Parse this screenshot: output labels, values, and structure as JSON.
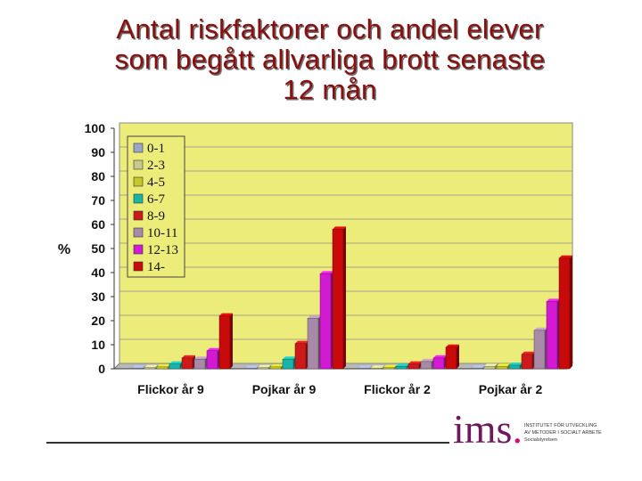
{
  "title": {
    "line1": "Antal riskfaktorer och andel elever",
    "line2": "som begått allvarliga brott senaste",
    "line3": "12 mån"
  },
  "logo": {
    "text": "ims",
    "dot": ".",
    "lines": [
      "INSTITUTET FÖR UTVECKLING",
      "AV METODER I SOCIALT ARBETE",
      "Socialstyrelsen"
    ]
  },
  "colors": {
    "plot_bg": "#ecec7a",
    "grid": "#8c8c8c",
    "series": [
      "#9aa6c8",
      "#c8c88a",
      "#c8c82a",
      "#18b4a8",
      "#cc1a1a",
      "#a88aa8",
      "#d21ad2",
      "#c80a0a"
    ]
  },
  "chart_data": {
    "type": "bar",
    "categories": [
      "Flickor år 9",
      "Pojkar år 9",
      "Flickor år 2",
      "Pojkar år 2"
    ],
    "series": [
      {
        "name": "0-1",
        "values": [
          0.3,
          0.2,
          0.2,
          0.3
        ]
      },
      {
        "name": "2-3",
        "values": [
          0.5,
          0.5,
          0.3,
          1
        ]
      },
      {
        "name": "4-5",
        "values": [
          0.8,
          0.8,
          0.5,
          1
        ]
      },
      {
        "name": "6-7",
        "values": [
          2,
          4,
          1,
          1.5
        ]
      },
      {
        "name": "8-9",
        "values": [
          4.5,
          10.5,
          2,
          6
        ]
      },
      {
        "name": "10-11",
        "values": [
          4,
          21,
          3,
          16
        ]
      },
      {
        "name": "12-13",
        "values": [
          7.5,
          39.5,
          4.5,
          28
        ]
      },
      {
        "name": "14-",
        "values": [
          22,
          58,
          9,
          46
        ]
      }
    ],
    "ylabel": "%",
    "ylim": [
      0,
      100
    ],
    "yticks": [
      "0",
      "10",
      "20",
      "30",
      "40",
      "50",
      "60",
      "70",
      "80",
      "90",
      "100"
    ],
    "grid": true,
    "legend": "top-left inside plot"
  }
}
